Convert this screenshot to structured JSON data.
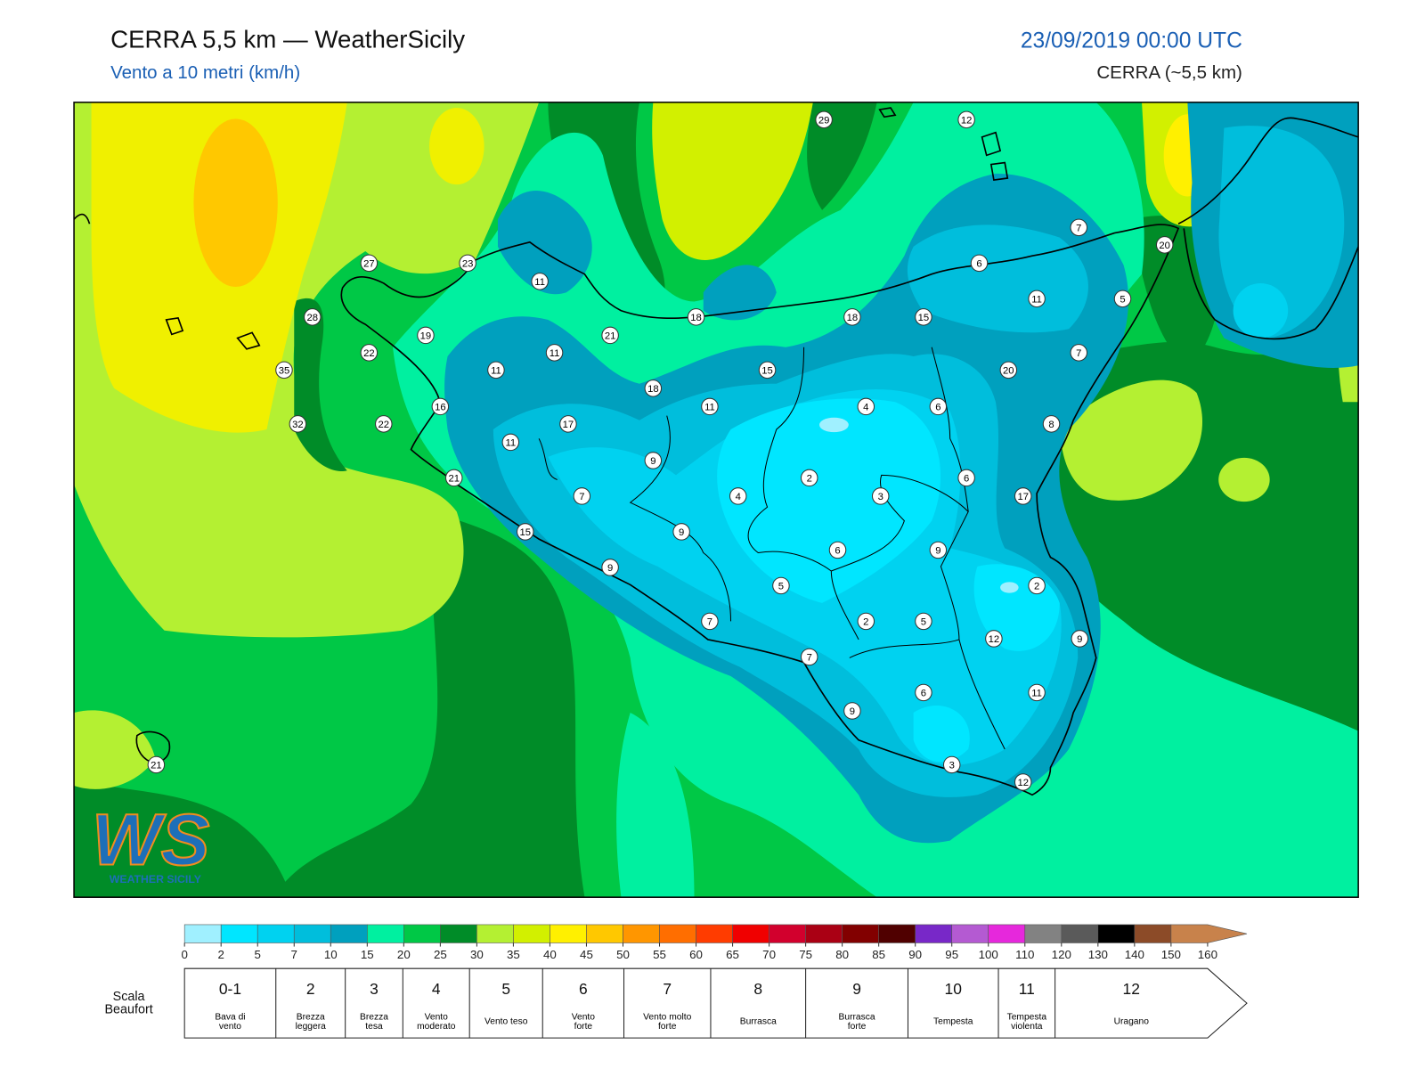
{
  "header": {
    "title": "CERRA 5,5 km — WeatherSicily",
    "subtitle": "Vento a 10 metri (km/h)",
    "datetime": "23/09/2019 00:00 UTC",
    "model": "CERRA (~5,5 km)"
  },
  "stations": [
    29,
    12,
    7,
    20,
    27,
    23,
    11,
    6,
    11,
    5,
    28,
    18,
    18,
    15,
    19,
    21,
    22,
    11,
    7,
    35,
    11,
    15,
    20,
    18,
    16,
    11,
    4,
    6,
    32,
    22,
    17,
    8,
    11,
    9,
    21,
    2,
    6,
    7,
    4,
    3,
    17,
    9,
    15,
    6,
    9,
    9,
    5,
    2,
    7,
    2,
    5,
    12,
    9,
    7,
    6,
    11,
    9,
    3,
    12,
    21
  ],
  "logo": {
    "mark": "WS",
    "name": "WEATHER SICILY"
  },
  "colorbar": {
    "ticks": [
      0,
      2,
      5,
      7,
      10,
      15,
      20,
      25,
      30,
      35,
      40,
      45,
      50,
      55,
      60,
      65,
      70,
      75,
      80,
      85,
      90,
      95,
      100,
      110,
      120,
      130,
      140,
      150,
      160
    ],
    "colors": [
      "#a0f0ff",
      "#00e6ff",
      "#00d2f0",
      "#00bedc",
      "#00a0be",
      "#00f0a0",
      "#00c846",
      "#008c28",
      "#b4f032",
      "#d2f000",
      "#fff000",
      "#ffc800",
      "#ff9600",
      "#ff6e00",
      "#ff3c00",
      "#f00000",
      "#d2002d",
      "#aa0014",
      "#820000",
      "#500000",
      "#7828c8",
      "#b45ad2",
      "#e628dc",
      "#828282",
      "#5a5a5a",
      "#000000",
      "#8c4b28",
      "#c8824b"
    ]
  },
  "beaufort": {
    "label": [
      "Scala",
      "Beaufort"
    ],
    "scale": [
      {
        "force": "0-1",
        "description": "Bava di vento"
      },
      {
        "force": "2",
        "description": "Brezza leggera"
      },
      {
        "force": "3",
        "description": "Brezza tesa"
      },
      {
        "force": "4",
        "description": "Vento moderato"
      },
      {
        "force": "5",
        "description": "Vento teso"
      },
      {
        "force": "6",
        "description": "Vento forte"
      },
      {
        "force": "7",
        "description": "Vento molto forte"
      },
      {
        "force": "8",
        "description": "Burrasca"
      },
      {
        "force": "9",
        "description": "Burrasca forte"
      },
      {
        "force": "10",
        "description": "Tempesta"
      },
      {
        "force": "11",
        "description": "Tempesta violenta"
      },
      {
        "force": "12",
        "description": "Uragano"
      }
    ]
  }
}
